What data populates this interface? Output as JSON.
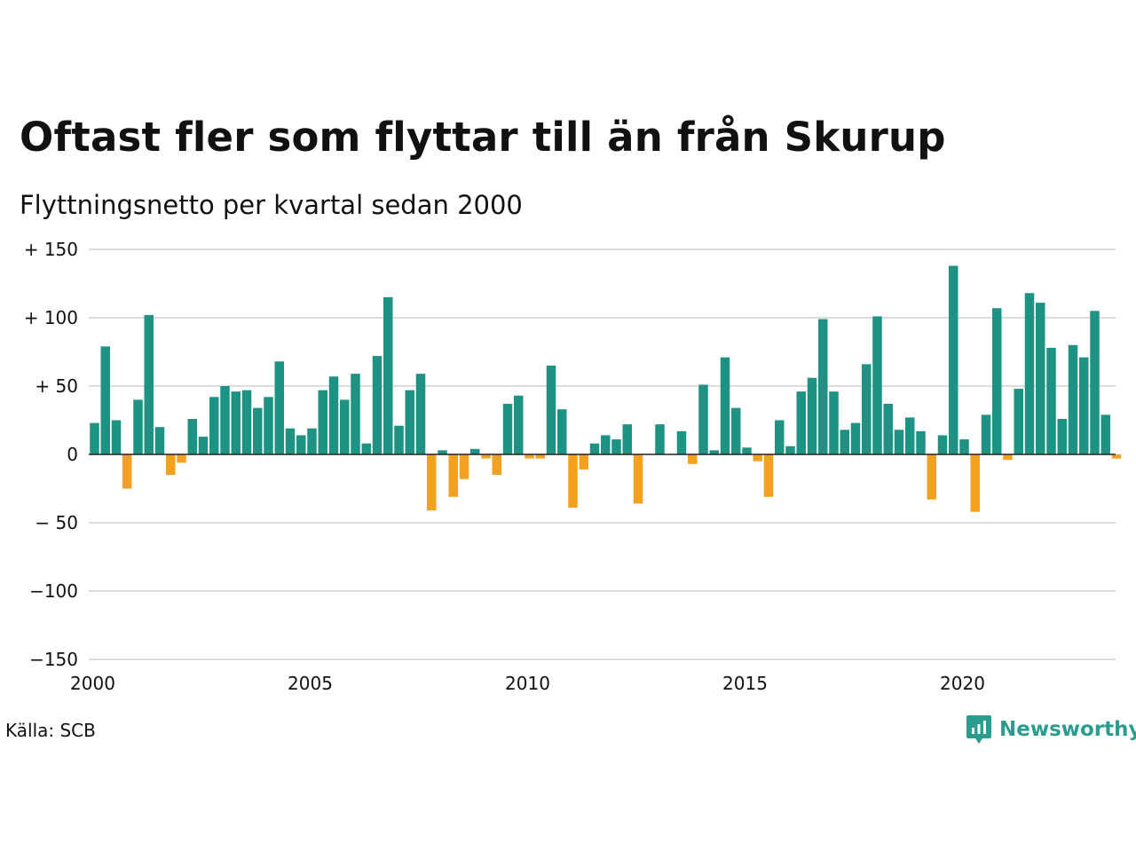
{
  "header": {
    "title": "Oftast fler som flyttar till än från Skurup",
    "subtitle": "Flyttningsnetto per kvartal sedan 2000"
  },
  "footer": {
    "source": "Källa: SCB",
    "logo_text": "Newsworthy"
  },
  "colors": {
    "positive": "#1e9384",
    "negative": "#f4a020",
    "grid": "#dddddd",
    "zero_line": "#222222",
    "logo": "#2a9d8f"
  },
  "chart_data": {
    "type": "bar",
    "title": "Oftast fler som flyttar till än från Skurup",
    "subtitle": "Flyttningsnetto per kvartal sedan 2000",
    "xlabel": "",
    "ylabel": "",
    "ylim": [
      -150,
      150
    ],
    "y_ticks": [
      {
        "value": 150,
        "label": "+ 150"
      },
      {
        "value": 100,
        "label": "+ 100"
      },
      {
        "value": 50,
        "label": "+  50"
      },
      {
        "value": 0,
        "label": "0"
      },
      {
        "value": -50,
        "label": "− 50"
      },
      {
        "value": -100,
        "label": "−100"
      },
      {
        "value": -150,
        "label": "−150"
      }
    ],
    "x_ticks": [
      {
        "value": 2000,
        "label": "2000"
      },
      {
        "value": 2005,
        "label": "2005"
      },
      {
        "value": 2010,
        "label": "2010"
      },
      {
        "value": 2015,
        "label": "2015"
      },
      {
        "value": 2020,
        "label": "2020"
      }
    ],
    "grid": true,
    "first_quarter": "2000 Q1",
    "last_quarter": "2023 Q3",
    "values": [
      23,
      79,
      25,
      -25,
      40,
      102,
      20,
      -15,
      -6,
      26,
      13,
      42,
      50,
      46,
      47,
      34,
      42,
      68,
      19,
      14,
      19,
      47,
      57,
      40,
      59,
      8,
      72,
      115,
      21,
      47,
      59,
      -41,
      3,
      -31,
      -18,
      4,
      -3,
      -15,
      37,
      43,
      -3,
      -3,
      65,
      33,
      -39,
      -11,
      8,
      14,
      11,
      22,
      -36,
      0,
      22,
      0,
      17,
      -7,
      51,
      3,
      71,
      34,
      5,
      -5,
      -31,
      25,
      6,
      46,
      56,
      99,
      46,
      18,
      23,
      66,
      101,
      37,
      18,
      27,
      17,
      -33,
      14,
      138,
      11,
      -42,
      29,
      107,
      -4,
      48,
      118,
      111,
      78,
      26,
      80,
      71,
      105,
      29,
      -3
    ]
  }
}
